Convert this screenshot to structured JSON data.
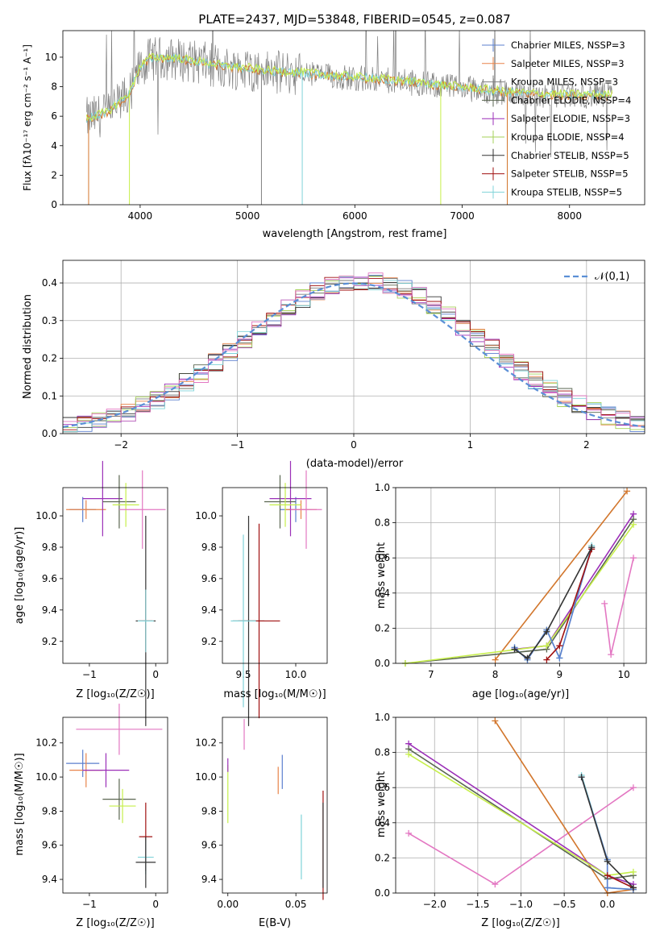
{
  "colors": {
    "chabrier_miles": "#5b7fce",
    "salpeter_miles": "#e8844a",
    "kroupa_miles": "#7f7f7f",
    "chabrier_elodie": "#5a6650",
    "salpeter_elodie": "#9b2fb8",
    "kroupa_elodie": "#a6d15a",
    "chabrier_stelib": "#333333",
    "salpeter_stelib": "#a01010",
    "kroupa_stelib": "#7fd3d8",
    "pink": "#e377c2",
    "lime": "#c6ef4a",
    "orange": "#d2762c",
    "data_gray": "#808080",
    "normal": "#5b8fd6"
  },
  "chart_data": [
    {
      "id": "spectrum",
      "type": "line",
      "title": "PLATE=2437, MJD=53848, FIBERID=0545, z=0.087",
      "xlabel": "wavelength [Angstrom, rest frame]",
      "ylabel": "Flux [fλ10⁻¹⁷ erg cm⁻² s⁻¹ A⁻¹]",
      "xlim": [
        3280,
        8700
      ],
      "ylim": [
        0,
        11.8
      ],
      "xticks": [
        4000,
        5000,
        6000,
        7000,
        8000
      ],
      "yticks": [
        0,
        2,
        4,
        6,
        8,
        10
      ],
      "legend_position": "top-right",
      "legend": [
        "Chabrier MILES, NSSP=3",
        "Salpeter MILES, NSSP=3",
        "Kroupa MILES, NSSP=3",
        "Chabrier ELODIE, NSSP=4",
        "Salpeter ELODIE, NSSP=3",
        "Kroupa ELODIE, NSSP=4",
        "Chabrier STELIB, NSSP=5",
        "Salpeter STELIB, NSSP=5",
        "Kroupa STELIB, NSSP=5"
      ],
      "continuum": [
        [
          3500,
          5.8
        ],
        [
          3700,
          6.2
        ],
        [
          3900,
          7.5
        ],
        [
          4000,
          9.3
        ],
        [
          4100,
          9.9
        ],
        [
          4300,
          9.9
        ],
        [
          4500,
          9.7
        ],
        [
          4800,
          9.3
        ],
        [
          5000,
          9.2
        ],
        [
          5200,
          9.0
        ],
        [
          5500,
          8.9
        ],
        [
          5800,
          8.7
        ],
        [
          6000,
          8.6
        ],
        [
          6500,
          8.3
        ],
        [
          7000,
          7.9
        ],
        [
          7400,
          7.6
        ],
        [
          7600,
          7.5
        ],
        [
          8000,
          7.4
        ],
        [
          8400,
          7.4
        ]
      ]
    },
    {
      "id": "residuals",
      "type": "line",
      "xlabel": "(data-model)/error",
      "ylabel": "Normed distribution",
      "xlim": [
        -2.5,
        2.5
      ],
      "ylim": [
        0,
        0.46
      ],
      "xticks": [
        -2,
        -1,
        0,
        1,
        2
      ],
      "yticks": [
        0.0,
        0.1,
        0.2,
        0.3,
        0.4
      ],
      "legend": "𝒩(0,1)",
      "legend_position": "top-right",
      "grid": true,
      "bins": 40
    },
    {
      "id": "age_vs_z",
      "type": "scatter",
      "xlabel": "Z [log₁₀(Z/Z☉)]",
      "ylabel": "age  [log₁₀(age/yr)]",
      "xlim": [
        -1.4,
        0.18
      ],
      "ylim": [
        9.06,
        10.18
      ],
      "xticks": [
        -1,
        0
      ],
      "yticks": [
        9.2,
        9.4,
        9.6,
        9.8,
        10.0
      ]
    },
    {
      "id": "age_vs_mass",
      "type": "scatter",
      "xlabel": "mass [log₁₀(M/M☉)]",
      "xlim": [
        9.3,
        10.3
      ],
      "ylim": [
        9.06,
        10.18
      ],
      "xticks": [
        9.5,
        10.0
      ],
      "yticks": [
        9.2,
        9.4,
        9.6,
        9.8,
        10.0
      ]
    },
    {
      "id": "weight_vs_age",
      "type": "line",
      "xlabel": "age  [log₁₀(age/yr)]",
      "ylabel": "mass weight",
      "xlim": [
        6.45,
        10.35
      ],
      "ylim": [
        0,
        1
      ],
      "xticks": [
        7,
        8,
        9,
        10
      ],
      "yticks": [
        0.0,
        0.2,
        0.4,
        0.6,
        0.8,
        1.0
      ],
      "grid": true,
      "series": [
        {
          "color": "#e377c2",
          "x": [
            9.7,
            9.8,
            10.15
          ],
          "y": [
            0.34,
            0.05,
            0.6
          ]
        },
        {
          "color": "#d2762c",
          "x": [
            8.0,
            10.05
          ],
          "y": [
            0.02,
            0.98
          ]
        },
        {
          "color": "#9b2fb8",
          "x": [
            8.3,
            8.8,
            10.15
          ],
          "y": [
            0.08,
            0.1,
            0.85
          ]
        },
        {
          "color": "#5a6650",
          "x": [
            6.6,
            8.8,
            10.15
          ],
          "y": [
            0.0,
            0.08,
            0.82
          ]
        },
        {
          "color": "#c6ef4a",
          "x": [
            6.6,
            8.8,
            10.15
          ],
          "y": [
            0.0,
            0.1,
            0.79
          ]
        },
        {
          "color": "#7fd3d8",
          "x": [
            8.3,
            8.5,
            8.8,
            9.0,
            9.5
          ],
          "y": [
            0.09,
            0.02,
            0.19,
            0.03,
            0.67
          ]
        },
        {
          "color": "#5b7fce",
          "x": [
            8.3,
            8.5,
            8.8,
            9.0,
            9.5
          ],
          "y": [
            0.09,
            0.02,
            0.19,
            0.03,
            0.66
          ]
        },
        {
          "color": "#a01010",
          "x": [
            8.8,
            9.0,
            9.5
          ],
          "y": [
            0.02,
            0.1,
            0.65
          ]
        },
        {
          "color": "#333333",
          "x": [
            8.3,
            8.5,
            8.8,
            9.5
          ],
          "y": [
            0.08,
            0.03,
            0.18,
            0.66
          ]
        }
      ]
    },
    {
      "id": "mass_vs_z",
      "type": "scatter",
      "xlabel": "Z [log₁₀(Z/Z☉)]",
      "ylabel": "mass [log₁₀(M/M☉)]",
      "xlim": [
        -1.4,
        0.18
      ],
      "ylim": [
        9.32,
        10.35
      ],
      "xticks": [
        -1,
        0
      ],
      "yticks": [
        9.4,
        9.6,
        9.8,
        10.0,
        10.2
      ]
    },
    {
      "id": "mass_vs_ebv",
      "type": "scatter",
      "xlabel": "E(B-V)",
      "xlim": [
        -0.004,
        0.073
      ],
      "ylim": [
        9.32,
        10.35
      ],
      "xticks": [
        0.0,
        0.05
      ],
      "yticks": [
        9.4,
        9.6,
        9.8,
        10.0,
        10.2
      ]
    },
    {
      "id": "weight_vs_z",
      "type": "line",
      "xlabel": "Z [log₁₀(Z/Z☉)]",
      "ylabel": "mass weight",
      "xlim": [
        -2.45,
        0.45
      ],
      "ylim": [
        0,
        1
      ],
      "xticks": [
        -2.0,
        -1.5,
        -1.0,
        -0.5,
        0.0
      ],
      "yticks": [
        0.0,
        0.2,
        0.4,
        0.6,
        0.8,
        1.0
      ],
      "grid": true,
      "series": [
        {
          "color": "#e377c2",
          "x": [
            -2.3,
            -1.3,
            0.3
          ],
          "y": [
            0.34,
            0.05,
            0.6
          ]
        },
        {
          "color": "#d2762c",
          "x": [
            -1.3,
            0.0,
            0.3
          ],
          "y": [
            0.98,
            0.0,
            0.02
          ]
        },
        {
          "color": "#9b2fb8",
          "x": [
            -2.3,
            0.0,
            0.3
          ],
          "y": [
            0.85,
            0.1,
            0.05
          ]
        },
        {
          "color": "#5a6650",
          "x": [
            -2.3,
            0.0,
            0.3
          ],
          "y": [
            0.82,
            0.08,
            0.1
          ]
        },
        {
          "color": "#c6ef4a",
          "x": [
            -2.3,
            0.0,
            0.3
          ],
          "y": [
            0.79,
            0.1,
            0.12
          ]
        },
        {
          "color": "#7fd3d8",
          "x": [
            -0.3,
            0.0,
            0.0,
            0.3
          ],
          "y": [
            0.67,
            0.19,
            0.03,
            0.02
          ]
        },
        {
          "color": "#5b7fce",
          "x": [
            -0.3,
            0.0,
            0.0,
            0.3
          ],
          "y": [
            0.66,
            0.19,
            0.03,
            0.02
          ]
        },
        {
          "color": "#a01010",
          "x": [
            0.0,
            0.3
          ],
          "y": [
            0.1,
            0.03
          ]
        },
        {
          "color": "#333333",
          "x": [
            -0.3,
            0.0,
            0.3
          ],
          "y": [
            0.66,
            0.18,
            0.03
          ]
        }
      ]
    }
  ],
  "points": {
    "age_vs_z": [
      {
        "c": "#5b7fce",
        "x": -1.1,
        "y": 10.04,
        "ex": 0.2,
        "ey": 0.08
      },
      {
        "c": "#e8844a",
        "x": -1.05,
        "y": 10.04,
        "ex": 0.3,
        "ey": 0.06
      },
      {
        "c": "#9b2fb8",
        "x": -0.8,
        "y": 10.11,
        "ex": 0.3,
        "ey": 0.24
      },
      {
        "c": "#5a6650",
        "x": -0.55,
        "y": 10.09,
        "ex": 0.25,
        "ey": 0.17
      },
      {
        "c": "#c6ef4a",
        "x": -0.45,
        "y": 10.07,
        "ex": 0.2,
        "ey": 0.14
      },
      {
        "c": "#e377c2",
        "x": -0.2,
        "y": 10.04,
        "ex": 0.35,
        "ey": 0.25
      },
      {
        "c": "#333333",
        "x": -0.15,
        "y": 9.33,
        "ex": 0.15,
        "ey": 0.67
      },
      {
        "c": "#a01010",
        "x": -0.15,
        "y": 9.33,
        "ex": 0.1,
        "ey": 0.2
      },
      {
        "c": "#7fd3d8",
        "x": -0.15,
        "y": 9.33,
        "ex": 0.12,
        "ey": 0.2
      }
    ],
    "age_vs_mass": [
      {
        "c": "#5b7fce",
        "x": 10.0,
        "y": 10.04,
        "ex": 0.15,
        "ey": 0.08
      },
      {
        "c": "#e8844a",
        "x": 10.05,
        "y": 10.04,
        "ex": 0.15,
        "ey": 0.06
      },
      {
        "c": "#9b2fb8",
        "x": 9.95,
        "y": 10.11,
        "ex": 0.2,
        "ey": 0.24
      },
      {
        "c": "#5a6650",
        "x": 9.85,
        "y": 10.09,
        "ex": 0.15,
        "ey": 0.17
      },
      {
        "c": "#c6ef4a",
        "x": 9.9,
        "y": 10.07,
        "ex": 0.15,
        "ey": 0.14
      },
      {
        "c": "#e377c2",
        "x": 10.1,
        "y": 10.04,
        "ex": 0.15,
        "ey": 0.25
      },
      {
        "c": "#333333",
        "x": 9.55,
        "y": 9.33,
        "ex": 0.15,
        "ey": 0.67
      },
      {
        "c": "#a01010",
        "x": 9.65,
        "y": 9.33,
        "ex": 0.2,
        "ey": 0.62
      },
      {
        "c": "#7fd3d8",
        "x": 9.5,
        "y": 9.33,
        "ex": 0.12,
        "ey": 0.55
      }
    ],
    "mass_vs_z": [
      {
        "c": "#5b7fce",
        "x": -1.1,
        "y": 10.08,
        "ex": 0.25,
        "ey": 0.08
      },
      {
        "c": "#e8844a",
        "x": -1.05,
        "y": 10.04,
        "ex": 0.25,
        "ey": 0.1
      },
      {
        "c": "#9b2fb8",
        "x": -0.75,
        "y": 10.04,
        "ex": 0.35,
        "ey": 0.1
      },
      {
        "c": "#5a6650",
        "x": -0.55,
        "y": 9.87,
        "ex": 0.25,
        "ey": 0.12
      },
      {
        "c": "#c6ef4a",
        "x": -0.5,
        "y": 9.83,
        "ex": 0.2,
        "ey": 0.1
      },
      {
        "c": "#e377c2",
        "x": -0.55,
        "y": 10.28,
        "ex": 0.65,
        "ey": 0.15
      },
      {
        "c": "#a01010",
        "x": -0.15,
        "y": 9.65,
        "ex": 0.1,
        "ey": 0.2
      },
      {
        "c": "#7fd3d8",
        "x": -0.15,
        "y": 9.53,
        "ex": 0.12,
        "ey": 0.1
      },
      {
        "c": "#333333",
        "x": -0.15,
        "y": 9.5,
        "ex": 0.15,
        "ey": 0.15
      }
    ],
    "mass_vs_ebv": [
      {
        "c": "#c6ef4a",
        "x": 0.0,
        "y": 9.9,
        "ex": 0.0,
        "ey": 0.17
      },
      {
        "c": "#9b2fb8",
        "x": 0.0,
        "y": 10.07,
        "ex": 0.0,
        "ey": 0.04
      },
      {
        "c": "#e377c2",
        "x": 0.012,
        "y": 10.25,
        "ex": 0.0,
        "ey": 0.09
      },
      {
        "c": "#e8844a",
        "x": 0.037,
        "y": 9.98,
        "ex": 0.0,
        "ey": 0.08
      },
      {
        "c": "#5b7fce",
        "x": 0.04,
        "y": 10.03,
        "ex": 0.0,
        "ey": 0.1
      },
      {
        "c": "#7fd3d8",
        "x": 0.054,
        "y": 9.59,
        "ex": 0.0,
        "ey": 0.19
      },
      {
        "c": "#a01010",
        "x": 0.07,
        "y": 9.6,
        "ex": 0.0,
        "ey": 0.32
      },
      {
        "c": "#333333",
        "x": 0.07,
        "y": 9.6,
        "ex": 0.0,
        "ey": 0.25
      }
    ]
  }
}
